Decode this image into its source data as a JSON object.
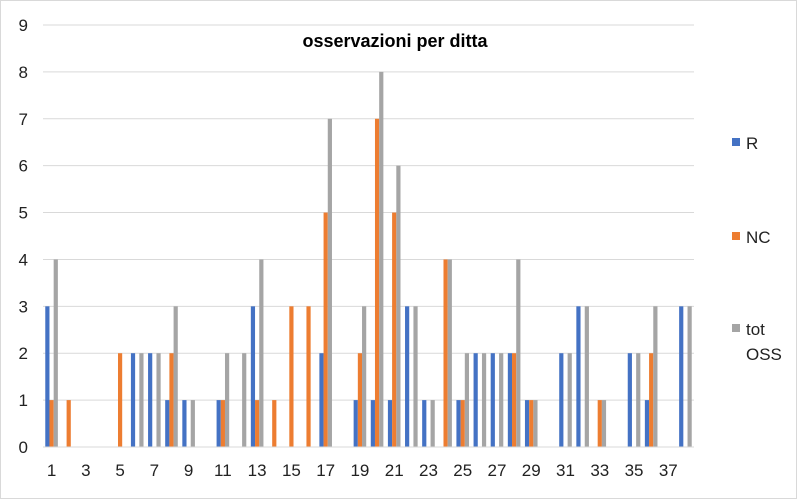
{
  "chart_data": {
    "type": "bar",
    "title": "osservazioni per ditta",
    "xlabel": "",
    "ylabel": "",
    "ylim": [
      0,
      9
    ],
    "yticks": [
      0,
      1,
      2,
      3,
      4,
      5,
      6,
      7,
      8,
      9
    ],
    "grid": true,
    "legend_position": "right",
    "categories": [
      1,
      2,
      3,
      4,
      5,
      6,
      7,
      8,
      9,
      10,
      11,
      12,
      13,
      14,
      15,
      16,
      17,
      18,
      19,
      20,
      21,
      22,
      23,
      24,
      25,
      26,
      27,
      28,
      29,
      30,
      31,
      32,
      33,
      34,
      35,
      36,
      37,
      38
    ],
    "xtick_labels": [
      "1",
      "3",
      "5",
      "7",
      "9",
      "11",
      "13",
      "15",
      "17",
      "19",
      "21",
      "23",
      "25",
      "27",
      "29",
      "31",
      "33",
      "35",
      "37"
    ],
    "series": [
      {
        "name": "R",
        "color": "#4472c4",
        "values": [
          3,
          0,
          0,
          0,
          0,
          2,
          2,
          1,
          1,
          0,
          1,
          0,
          3,
          0,
          0,
          0,
          2,
          0,
          1,
          1,
          1,
          3,
          1,
          0,
          1,
          2,
          2,
          2,
          1,
          0,
          2,
          3,
          0,
          0,
          2,
          1,
          0,
          3
        ]
      },
      {
        "name": "NC",
        "color": "#ed7d31",
        "values": [
          1,
          1,
          0,
          0,
          2,
          0,
          0,
          2,
          0,
          0,
          1,
          0,
          1,
          1,
          3,
          3,
          5,
          0,
          2,
          7,
          5,
          0,
          0,
          4,
          1,
          0,
          0,
          2,
          1,
          0,
          0,
          0,
          1,
          0,
          0,
          2,
          0,
          0
        ]
      },
      {
        "name": "tot OSS",
        "color": "#a5a5a5",
        "values": [
          4,
          0,
          0,
          0,
          0,
          2,
          2,
          3,
          1,
          0,
          2,
          2,
          4,
          0,
          0,
          0,
          7,
          0,
          3,
          8,
          6,
          3,
          1,
          4,
          2,
          2,
          2,
          4,
          1,
          0,
          2,
          3,
          1,
          0,
          2,
          3,
          0,
          3
        ]
      }
    ],
    "legend": {
      "items": [
        {
          "label": "R",
          "icon": "blue-square-icon"
        },
        {
          "label": "NC",
          "icon": "orange-square-icon"
        },
        {
          "label": "tot OSS",
          "icon": "gray-square-icon"
        }
      ]
    }
  }
}
